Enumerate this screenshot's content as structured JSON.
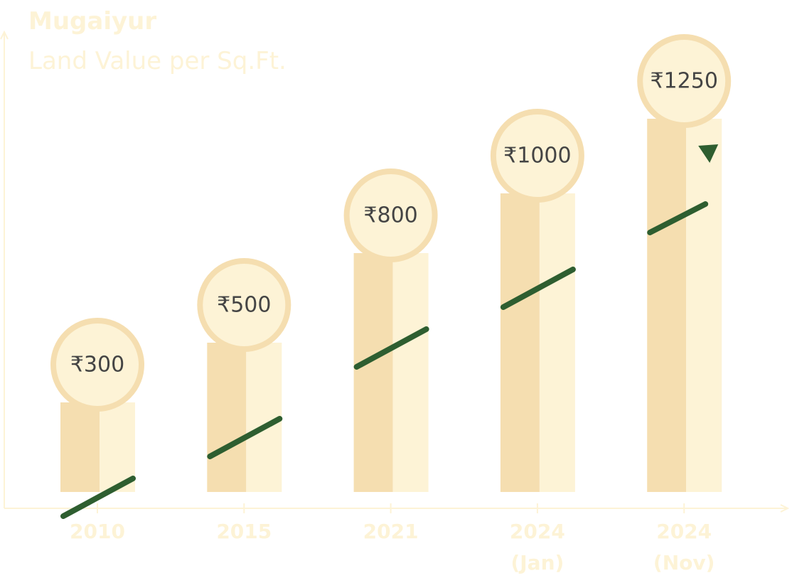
{
  "chart_data": {
    "type": "bar",
    "title": "Mugaiyur",
    "subtitle": "Land Value per Sq.Ft.",
    "categories": [
      "2010",
      "2015",
      "2021",
      "2024\n(Jan)",
      "2024\n(Nov)"
    ],
    "values": [
      300,
      500,
      800,
      1000,
      1250
    ],
    "value_labels": [
      "₹300",
      "₹500",
      "₹800",
      "₹1000",
      "₹1250"
    ],
    "ylim": [
      0,
      1300
    ],
    "colors": {
      "bar_left": "#f5deb0",
      "bar_right": "#fdf3d6",
      "circle": "#fdf3d6",
      "circle_border": "#f5deb0",
      "trend": "#2e5e30",
      "axis": "#fdf3d6",
      "text": "#fdf3d6",
      "label": "#444444"
    }
  }
}
